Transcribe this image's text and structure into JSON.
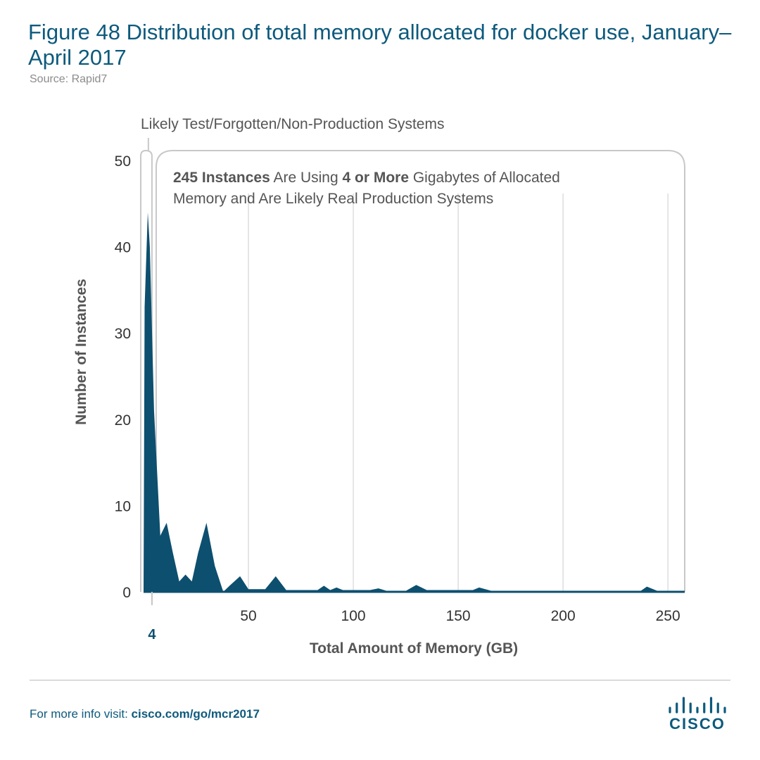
{
  "title": "Figure 48  Distribution of total memory allocated for docker use, January–April 2017",
  "source": "Source: Rapid7",
  "footer": {
    "prefix": "For more info visit: ",
    "link": "cisco.com/go/mcr2017"
  },
  "logo": {
    "text": "CISCO",
    "icon": "cisco-bridge-logo"
  },
  "colors": {
    "fill": "#0d4f6f",
    "title": "#0d5a7d",
    "bracket": "#c8c8c8",
    "grid": "#dddddd"
  },
  "chart_data": {
    "type": "area",
    "xlabel": "Total Amount of Memory (GB)",
    "ylabel": "Number of Instances",
    "xlim": [
      0,
      258
    ],
    "ylim": [
      0,
      50
    ],
    "xticks": [
      50,
      100,
      150,
      200,
      250
    ],
    "yticks": [
      0,
      10,
      20,
      30,
      40,
      50
    ],
    "marker": {
      "x": 4,
      "label": "4"
    },
    "grid": true,
    "annotations": {
      "left_bracket": "Likely Test/Forgotten/Non-Production Systems",
      "right_bracket_parts": [
        {
          "text": "245 Instances",
          "bold": true
        },
        {
          "text": " Are Using ",
          "bold": false
        },
        {
          "text": "4 or More",
          "bold": true
        },
        {
          "text": " Gigabytes of Allocated Memory and Are Likely Real Production Systems",
          "bold": false
        }
      ]
    },
    "x": [
      0,
      0.5,
      2,
      3,
      5,
      8,
      11,
      14,
      17,
      20,
      23,
      26,
      30,
      34,
      38,
      41,
      46,
      50,
      54,
      58,
      63,
      68,
      73,
      78,
      83,
      86,
      89,
      92,
      95,
      99,
      103,
      108,
      112,
      116,
      121,
      125,
      130,
      135,
      140,
      150,
      157,
      160,
      166,
      175,
      200,
      230,
      237,
      240,
      245,
      258
    ],
    "y": [
      0,
      33,
      44,
      40,
      21,
      6.5,
      8,
      4.5,
      1.2,
      2,
      1.2,
      4.5,
      8,
      3,
      0,
      0.7,
      1.8,
      0.3,
      0.3,
      0.3,
      1.8,
      0.2,
      0.2,
      0.2,
      0.2,
      0.7,
      0.2,
      0.5,
      0.2,
      0.2,
      0.2,
      0.2,
      0.4,
      0.1,
      0.1,
      0.1,
      0.8,
      0.2,
      0.2,
      0.2,
      0.2,
      0.5,
      0.1,
      0.1,
      0.1,
      0.1,
      0.1,
      0.6,
      0.1,
      0.1
    ]
  }
}
